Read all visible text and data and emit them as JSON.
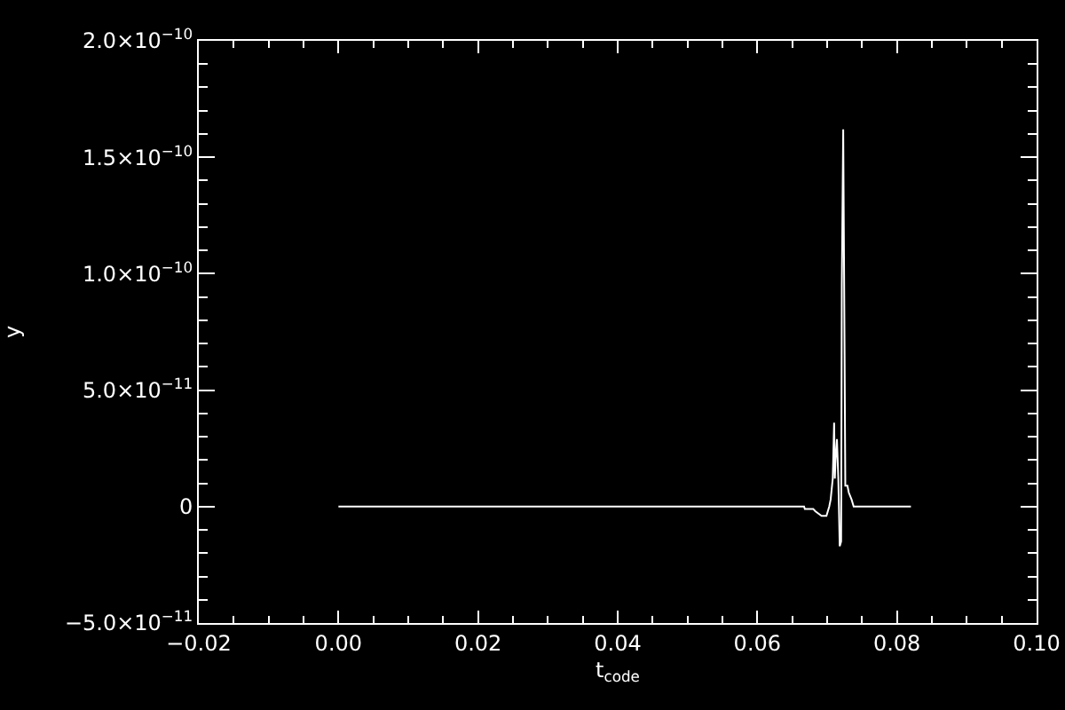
{
  "chart_data": {
    "type": "line",
    "xlabel": "t$_{code}$",
    "ylabel": "y",
    "color": "#ffffff",
    "x": [
      0,
      0.0667,
      0.0668,
      0.068,
      0.0683,
      0.0692,
      0.0699,
      0.0703,
      0.0705,
      0.0708,
      0.071,
      0.0711,
      0.0712,
      0.0714,
      0.0716,
      0.0718,
      0.072,
      0.0721,
      0.0723,
      0.0725,
      0.0726,
      0.0729,
      0.0731,
      0.0735,
      0.0738,
      0.082
    ],
    "values": [
      0,
      0,
      -1e-12,
      -1e-12,
      -2e-12,
      -4e-12,
      -4e-12,
      0,
      3e-12,
      1.2e-11,
      3.6e-11,
      1.2e-11,
      2e-11,
      2.9e-11,
      1.2e-11,
      -1.7e-11,
      -1.5e-11,
      9.5e-11,
      1.62e-10,
      6.5e-11,
      9e-12,
      9e-12,
      6e-12,
      3e-12,
      0,
      0
    ],
    "xlim": [
      -0.02,
      0.1
    ],
    "xticks": [
      {
        "value": -0.02,
        "label": "−0.02"
      },
      {
        "value": -0.015,
        "label": null
      },
      {
        "value": -0.01,
        "label": null
      },
      {
        "value": -0.005,
        "label": null
      },
      {
        "value": 0,
        "label": "0.00"
      },
      {
        "value": 0.005,
        "label": null
      },
      {
        "value": 0.01,
        "label": null
      },
      {
        "value": 0.015,
        "label": null
      },
      0.02,
      {
        "value": 0.025,
        "label": null
      },
      {
        "value": 0.03,
        "label": null
      },
      {
        "value": 0.035,
        "label": null
      },
      0.04,
      {
        "value": 0.045,
        "label": null
      },
      {
        "value": 0.05,
        "label": null
      },
      {
        "value": 0.055,
        "label": null
      },
      0.06,
      {
        "value": 0.065,
        "label": null
      },
      {
        "value": 0.07,
        "label": null
      },
      {
        "value": 0.075,
        "label": null
      },
      0.08,
      {
        "value": 0.085,
        "label": null
      },
      {
        "value": 0.09,
        "label": null
      },
      {
        "value": 0.095,
        "label": null
      },
      {
        "value": 0.1,
        "label": "0.10"
      }
    ],
    "ylim": [
      -5e-11,
      2e-10
    ],
    "yticks": [
      {
        "value": -5e-11,
        "label": "−5.0×10$^{−11}$"
      },
      {
        "value": -4e-11,
        "label": null
      },
      {
        "value": -3e-11,
        "label": null
      },
      {
        "value": -2e-11,
        "label": null
      },
      {
        "value": -1e-11,
        "label": null
      },
      0,
      {
        "value": 1e-11,
        "label": null
      },
      {
        "value": 2e-11,
        "label": null
      },
      {
        "value": 3e-11,
        "label": null
      },
      {
        "value": 4e-11,
        "label": null
      },
      {
        "value": 5e-11,
        "label": "5.0×10$^{−11}$"
      },
      {
        "value": 6e-11,
        "label": null
      },
      {
        "value": 7e-11,
        "label": null
      },
      {
        "value": 8e-11,
        "label": null
      },
      {
        "value": 9e-11,
        "label": null
      },
      {
        "value": 1e-10,
        "label": "1.0×10$^{−10}$"
      },
      {
        "value": 1.1e-10,
        "label": null
      },
      {
        "value": 1.2e-10,
        "label": null
      },
      {
        "value": 1.3e-10,
        "label": null
      },
      {
        "value": 1.4e-10,
        "label": null
      },
      {
        "value": 1.5e-10,
        "label": "1.5×10$^{−10}$"
      },
      {
        "value": 1.6e-10,
        "label": null
      },
      {
        "value": 1.7e-10,
        "label": null
      },
      {
        "value": 1.8e-10,
        "label": null
      },
      {
        "value": 1.9e-10,
        "label": null
      },
      {
        "value": 2e-10,
        "label": "2.0×10$^{−10}$"
      }
    ]
  }
}
